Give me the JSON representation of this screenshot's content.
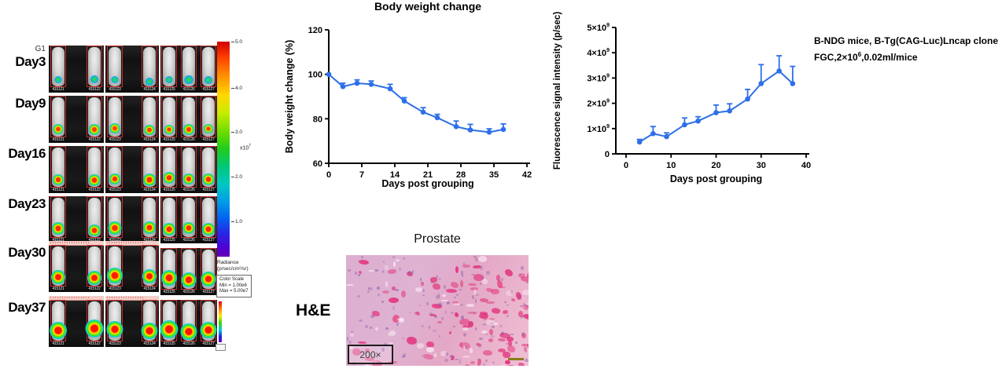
{
  "imaging": {
    "group_label": "G1",
    "mouse_ids": [
      "415121",
      "415122",
      "415123",
      "415124",
      "415125",
      "415126",
      "415127"
    ],
    "rows": [
      {
        "day": "Day3",
        "blob_size": 10,
        "blob_core": "#2fd44a",
        "palette": "green",
        "banner": false
      },
      {
        "day": "Day9",
        "blob_size": 13,
        "blob_core": "#ff3a00",
        "palette": "red",
        "banner": false
      },
      {
        "day": "Day16",
        "blob_size": 15,
        "blob_core": "#ff2a00",
        "palette": "red",
        "banner": false
      },
      {
        "day": "Day23",
        "blob_size": 16,
        "blob_core": "#ff2a00",
        "palette": "red",
        "banner": false
      },
      {
        "day": "Day30",
        "blob_size": 19,
        "blob_core": "#ff1c00",
        "palette": "red",
        "banner": true
      },
      {
        "day": "Day37",
        "blob_size": 22,
        "blob_core": "#ff1400",
        "palette": "red",
        "banner": true,
        "minibar": true
      }
    ],
    "colorbar": {
      "ticks": [
        "5.0",
        "4.0",
        "3.0",
        "2.0",
        "1.0"
      ],
      "multiplier_base": "x10",
      "multiplier_exp": "7",
      "radiance_label": "Radiance",
      "radiance_units": "(p/sec/cm²/sr)",
      "scale_box_lines": [
        "Color Scale",
        "Min = 1.00e6",
        "Max = 5.00e7"
      ]
    }
  },
  "chart_data": [
    {
      "id": "bw",
      "type": "line",
      "title": "Body weight change",
      "xlabel": "Days post grouping",
      "ylabel": "Body weight change (%)",
      "xlim": [
        0,
        42
      ],
      "ylim": [
        60,
        120
      ],
      "xticks": [
        0,
        7,
        14,
        21,
        28,
        35,
        42
      ],
      "yticks": [
        {
          "v": 60,
          "b": "60"
        },
        {
          "v": 80,
          "b": "80"
        },
        {
          "v": 100,
          "b": "100"
        },
        {
          "v": 120,
          "b": "120"
        }
      ],
      "grid": false,
      "legend": "none",
      "line_color": "#2D6FE8",
      "error_bars": "upper",
      "x": [
        0,
        3,
        6,
        9,
        13,
        16,
        20,
        23,
        27,
        30,
        34,
        37
      ],
      "y": [
        100,
        94.5,
        96,
        95.5,
        93.5,
        88,
        83,
        80.5,
        76.5,
        75,
        74,
        75.2
      ],
      "err": [
        0,
        1.5,
        1.5,
        1.5,
        2,
        1.5,
        2,
        1.5,
        2.5,
        2.5,
        1.5,
        2.5
      ]
    },
    {
      "id": "fl",
      "type": "line",
      "title": "",
      "xlabel": "Days post grouping",
      "ylabel": "Fluorescence signal intensity (p/sec)",
      "xlim": [
        0,
        40
      ],
      "ylim": [
        0,
        5
      ],
      "y_scale": 1000000000.0,
      "xticks": [
        0,
        10,
        20,
        30,
        40
      ],
      "yticks": [
        {
          "v": 0,
          "b": "0"
        },
        {
          "v": 1,
          "b": "1×10",
          "s": "9"
        },
        {
          "v": 2,
          "b": "2×10",
          "s": "9"
        },
        {
          "v": 3,
          "b": "3×10",
          "s": "9"
        },
        {
          "v": 4,
          "b": "4×10",
          "s": "9"
        },
        {
          "v": 5,
          "b": "5×10",
          "s": "9"
        }
      ],
      "grid": false,
      "legend": "none",
      "line_color": "#2D6FE8",
      "error_bars": "upper",
      "x": [
        3,
        6,
        9,
        13,
        16,
        20,
        23,
        27,
        30,
        34,
        37
      ],
      "y": [
        0.47,
        0.8,
        0.68,
        1.15,
        1.3,
        1.63,
        1.7,
        2.17,
        2.78,
        3.28,
        2.78
      ],
      "err": [
        0.1,
        0.28,
        0.15,
        0.27,
        0.17,
        0.3,
        0.28,
        0.38,
        0.75,
        0.6,
        0.68
      ]
    }
  ],
  "annotation": {
    "line1": "B-NDG mice, B-Tg(CAG-Luc)Lncap clone",
    "line2_prefix": "FGC,2×10",
    "line2_sup": "6",
    "line2_suffix": ",0.02ml/mice"
  },
  "histology": {
    "title": "Prostate",
    "stain_label": "H&E",
    "magnification": "200×"
  }
}
